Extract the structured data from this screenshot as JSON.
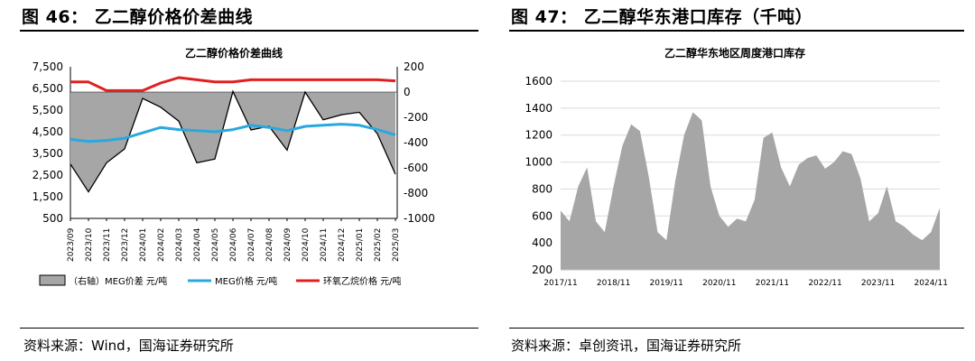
{
  "left": {
    "figure_title": "图 46：  乙二醇价格价差曲线",
    "source": "资料来源：Wind，国海证券研究所"
  },
  "right": {
    "figure_title": "图 47：  乙二醇华东港口库存（千吨）",
    "source": "资料来源：卓创资讯，国海证券研究所"
  },
  "chart_data": [
    {
      "type": "line",
      "title": "乙二醇价格价差曲线",
      "categories": [
        "2023/09",
        "2023/10",
        "2023/11",
        "2023/12",
        "2024/01",
        "2024/02",
        "2024/03",
        "2024/04",
        "2024/05",
        "2024/06",
        "2024/07",
        "2024/08",
        "2024/09",
        "2024/10",
        "2024/11",
        "2024/12",
        "2025/01",
        "2025/02",
        "2025/03"
      ],
      "y_left_ticks": [
        "7,500",
        "6,500",
        "5,500",
        "4,500",
        "3,500",
        "2,500",
        "1,500",
        "500"
      ],
      "y_left_range": [
        500,
        7500
      ],
      "y_right_ticks": [
        "200",
        "0",
        "-200",
        "-400",
        "-600",
        "-800",
        "-1000"
      ],
      "y_right_range": [
        -1000,
        200
      ],
      "legend_placement": "bottom",
      "series": [
        {
          "name": "（右轴）MEG价差  元/吨",
          "axis": "right",
          "style": "area",
          "color": "#a6a6a6",
          "x": [
            "2023/09",
            "2023/10",
            "2023/11",
            "2023/12",
            "2024/01",
            "2024/02",
            "2024/03",
            "2024/04",
            "2024/05",
            "2024/06",
            "2024/07",
            "2024/08",
            "2024/09",
            "2024/10",
            "2024/11",
            "2024/12",
            "2025/01",
            "2025/02",
            "2025/03"
          ],
          "values": [
            -570,
            -790,
            -560,
            -450,
            -50,
            -120,
            -230,
            -560,
            -530,
            5,
            -300,
            -270,
            -460,
            0,
            -220,
            -180,
            -160,
            -330,
            -650
          ]
        },
        {
          "name": "MEG价格  元/吨",
          "axis": "left",
          "style": "line",
          "color": "#29a8e0",
          "x": [
            "2023/09",
            "2023/10",
            "2023/11",
            "2023/12",
            "2024/01",
            "2024/02",
            "2024/03",
            "2024/04",
            "2024/05",
            "2024/06",
            "2024/07",
            "2024/08",
            "2024/09",
            "2024/10",
            "2024/11",
            "2024/12",
            "2025/01",
            "2025/02",
            "2025/03"
          ],
          "values": [
            4150,
            4050,
            4100,
            4200,
            4450,
            4700,
            4600,
            4550,
            4500,
            4600,
            4800,
            4700,
            4550,
            4750,
            4800,
            4850,
            4800,
            4600,
            4350
          ]
        },
        {
          "name": "环氧乙烷价格  元/吨",
          "axis": "left",
          "style": "line",
          "color": "#e02020",
          "x": [
            "2023/09",
            "2023/10",
            "2023/11",
            "2023/12",
            "2024/01",
            "2024/02",
            "2024/03",
            "2024/04",
            "2024/05",
            "2024/06",
            "2024/07",
            "2024/08",
            "2024/09",
            "2024/10",
            "2024/11",
            "2024/12",
            "2025/01",
            "2025/02",
            "2025/03"
          ],
          "values": [
            6800,
            6800,
            6400,
            6400,
            6400,
            6750,
            7000,
            6900,
            6800,
            6800,
            6900,
            6900,
            6900,
            6900,
            6900,
            6900,
            6900,
            6900,
            6850
          ]
        }
      ]
    },
    {
      "type": "area",
      "title": "乙二醇华东地区周度港口库存",
      "categories": [
        "2017/11",
        "2018/11",
        "2019/11",
        "2020/11",
        "2021/11",
        "2022/11",
        "2023/11",
        "2024/11"
      ],
      "ylim": [
        200,
        1600
      ],
      "y_ticks": [
        1600,
        1400,
        1200,
        1000,
        800,
        600,
        400,
        200
      ],
      "grid": true,
      "series": [
        {
          "color": "#a6a6a6",
          "x": [
            "2017/11",
            "2018/01",
            "2018/03",
            "2018/05",
            "2018/07",
            "2018/09",
            "2018/11",
            "2019/01",
            "2019/03",
            "2019/05",
            "2019/07",
            "2019/09",
            "2019/11",
            "2020/01",
            "2020/03",
            "2020/05",
            "2020/07",
            "2020/09",
            "2020/11",
            "2021/01",
            "2021/03",
            "2021/05",
            "2021/07",
            "2021/09",
            "2021/11",
            "2022/01",
            "2022/03",
            "2022/05",
            "2022/07",
            "2022/09",
            "2022/11",
            "2023/01",
            "2023/03",
            "2023/05",
            "2023/07",
            "2023/09",
            "2023/11",
            "2024/01",
            "2024/03",
            "2024/05",
            "2024/07",
            "2024/09",
            "2024/11",
            "2025/01"
          ],
          "values": [
            640,
            560,
            820,
            960,
            560,
            480,
            820,
            1120,
            1280,
            1230,
            890,
            480,
            420,
            860,
            1200,
            1370,
            1310,
            820,
            600,
            520,
            580,
            560,
            720,
            1180,
            1220,
            960,
            820,
            980,
            1030,
            1050,
            950,
            1000,
            1080,
            1060,
            880,
            560,
            620,
            820,
            560,
            520,
            460,
            420,
            480,
            660
          ]
        }
      ]
    }
  ]
}
